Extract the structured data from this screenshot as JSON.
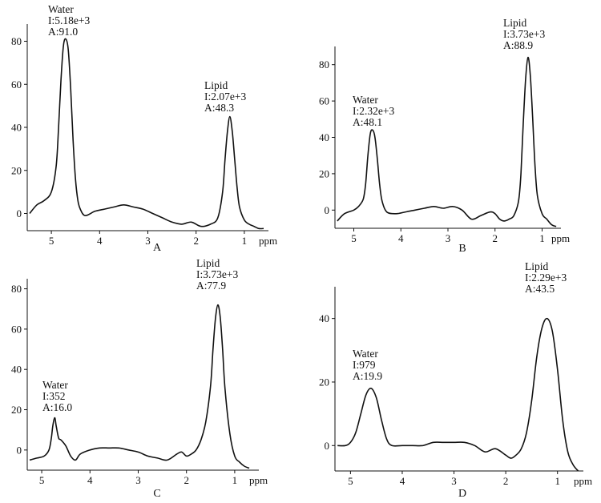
{
  "chart_data": [
    {
      "type": "line",
      "panel_label": "A",
      "xlabel": "ppm",
      "x_ticks": [
        "5",
        "4",
        "3",
        "2",
        "1"
      ],
      "y_ticks": [
        "0",
        "20",
        "40",
        "60",
        "80"
      ],
      "xlim": [
        5.5,
        0.5
      ],
      "ylim": [
        -8,
        88
      ],
      "peaks": [
        {
          "name": "Water",
          "ppm": 4.7,
          "height": 81,
          "width": 0.18,
          "intensity": "I:5.18e+3",
          "area": "A:91.0"
        },
        {
          "name": "Lipid",
          "ppm": 1.3,
          "height": 45,
          "width": 0.1,
          "intensity": "I:2.07e+3",
          "area": "A:48.3"
        }
      ],
      "series": [
        {
          "x": [
            5.45,
            5.3,
            5.15,
            5.0,
            4.9,
            4.85,
            4.8,
            4.75,
            4.7,
            4.65,
            4.6,
            4.55,
            4.5,
            4.45,
            4.4,
            4.3,
            4.1,
            3.9,
            3.7,
            3.5,
            3.3,
            3.1,
            2.9,
            2.7,
            2.5,
            2.3,
            2.1,
            1.9,
            1.7,
            1.55,
            1.45,
            1.4,
            1.35,
            1.3,
            1.25,
            1.2,
            1.15,
            1.1,
            1.0,
            0.9,
            0.8,
            0.7,
            0.6
          ],
          "y": [
            0,
            4,
            6,
            10,
            22,
            40,
            62,
            78,
            81,
            76,
            58,
            34,
            16,
            6,
            2,
            -1,
            1,
            2,
            3,
            4,
            3,
            2,
            0,
            -2,
            -4,
            -5,
            -4,
            -6,
            -5,
            -2,
            10,
            25,
            38,
            45,
            38,
            25,
            12,
            3,
            -3,
            -5,
            -6,
            -7,
            -7
          ]
        }
      ]
    },
    {
      "type": "line",
      "panel_label": "B",
      "xlabel": "ppm",
      "x_ticks": [
        "5",
        "4",
        "3",
        "2",
        "1"
      ],
      "y_ticks": [
        "0",
        "20",
        "40",
        "60",
        "80"
      ],
      "xlim": [
        5.4,
        0.6
      ],
      "ylim": [
        -10,
        90
      ],
      "peaks": [
        {
          "name": "Water",
          "ppm": 4.6,
          "height": 44,
          "width": 0.14,
          "intensity": "I:2.32e+3",
          "area": "A:48.1"
        },
        {
          "name": "Lipid",
          "ppm": 1.3,
          "height": 84,
          "width": 0.09,
          "intensity": "I:3.73e+3",
          "area": "A:88.9"
        }
      ],
      "series": [
        {
          "x": [
            5.35,
            5.2,
            5.0,
            4.9,
            4.8,
            4.75,
            4.7,
            4.65,
            4.6,
            4.55,
            4.5,
            4.45,
            4.4,
            4.3,
            4.1,
            3.9,
            3.7,
            3.5,
            3.3,
            3.1,
            2.9,
            2.7,
            2.5,
            2.3,
            2.1,
            2.0,
            1.9,
            1.8,
            1.7,
            1.6,
            1.5,
            1.45,
            1.4,
            1.35,
            1.3,
            1.25,
            1.2,
            1.15,
            1.1,
            1.0,
            0.9,
            0.8,
            0.7
          ],
          "y": [
            -6,
            -2,
            0,
            2,
            6,
            14,
            30,
            42,
            44,
            40,
            28,
            14,
            5,
            -1,
            -2,
            -1,
            0,
            1,
            2,
            1,
            2,
            0,
            -5,
            -3,
            -1,
            -2,
            -5,
            -6,
            -5,
            -3,
            5,
            20,
            48,
            72,
            84,
            74,
            50,
            24,
            8,
            -2,
            -5,
            -8,
            -9
          ]
        }
      ]
    },
    {
      "type": "line",
      "panel_label": "C",
      "xlabel": "ppm",
      "x_ticks": [
        "5",
        "4",
        "3",
        "2",
        "1"
      ],
      "y_ticks": [
        "0",
        "20",
        "40",
        "60",
        "80"
      ],
      "xlim": [
        5.3,
        0.5
      ],
      "ylim": [
        -10,
        85
      ],
      "peaks": [
        {
          "name": "Water",
          "ppm": 4.73,
          "height": 16,
          "width": 0.06,
          "intensity": "I:352",
          "area": "A:16.0"
        },
        {
          "name": "Lipid",
          "ppm": 1.35,
          "height": 72,
          "width": 0.12,
          "intensity": "I:3.73e+3",
          "area": "A:77.9"
        }
      ],
      "series": [
        {
          "x": [
            5.25,
            5.1,
            4.95,
            4.85,
            4.8,
            4.77,
            4.73,
            4.7,
            4.65,
            4.6,
            4.5,
            4.4,
            4.3,
            4.2,
            4.0,
            3.8,
            3.6,
            3.4,
            3.2,
            3.0,
            2.8,
            2.6,
            2.4,
            2.2,
            2.1,
            2.0,
            1.9,
            1.8,
            1.7,
            1.6,
            1.5,
            1.45,
            1.4,
            1.35,
            1.3,
            1.25,
            1.2,
            1.1,
            1.0,
            0.9,
            0.8,
            0.7
          ],
          "y": [
            -5,
            -4,
            -3,
            0,
            6,
            12,
            16,
            12,
            6,
            5,
            2,
            -3,
            -5,
            -2,
            0,
            1,
            1,
            1,
            0,
            -1,
            -3,
            -4,
            -5,
            -2,
            -1,
            -3,
            -2,
            0,
            5,
            14,
            32,
            50,
            65,
            72,
            66,
            50,
            30,
            8,
            -3,
            -6,
            -8,
            -9
          ]
        }
      ]
    },
    {
      "type": "line",
      "panel_label": "D",
      "xlabel": "ppm",
      "x_ticks": [
        "5",
        "4",
        "3",
        "2",
        "1"
      ],
      "y_ticks": [
        "0",
        "20",
        "40"
      ],
      "xlim": [
        5.3,
        0.5
      ],
      "ylim": [
        -8,
        50
      ],
      "peaks": [
        {
          "name": "Water",
          "ppm": 4.6,
          "height": 18,
          "width": 0.16,
          "intensity": "I:979",
          "area": "A:19.9"
        },
        {
          "name": "Lipid",
          "ppm": 1.2,
          "height": 40,
          "width": 0.13,
          "intensity": "I:2.29e+3",
          "area": "A:43.5"
        }
      ],
      "series": [
        {
          "x": [
            5.25,
            5.1,
            5.0,
            4.9,
            4.8,
            4.7,
            4.6,
            4.5,
            4.4,
            4.3,
            4.2,
            4.0,
            3.8,
            3.6,
            3.4,
            3.2,
            3.0,
            2.8,
            2.6,
            2.4,
            2.2,
            2.0,
            1.9,
            1.8,
            1.7,
            1.6,
            1.5,
            1.4,
            1.3,
            1.2,
            1.1,
            1.0,
            0.9,
            0.8,
            0.7,
            0.6
          ],
          "y": [
            0,
            0,
            1,
            4,
            10,
            16,
            18,
            15,
            8,
            2,
            0,
            0,
            0,
            0,
            1,
            1,
            1,
            1,
            0,
            -2,
            -1,
            -3,
            -4,
            -3,
            -1,
            4,
            14,
            28,
            37,
            40,
            36,
            24,
            8,
            -2,
            -6,
            -8
          ]
        }
      ]
    }
  ]
}
